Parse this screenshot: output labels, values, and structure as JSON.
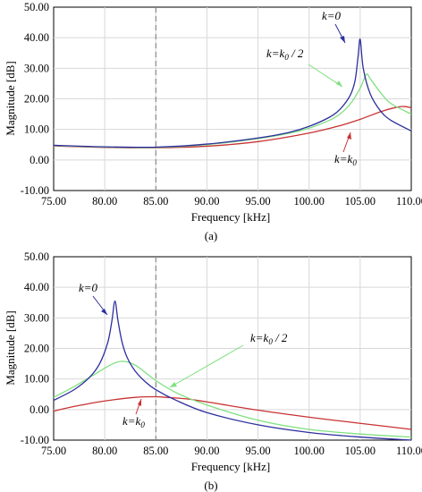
{
  "chart_data": [
    {
      "type": "line",
      "panel_label": "(a)",
      "xlabel": "Frequency [kHz]",
      "ylabel": "Magnitude [dB]",
      "xlim": [
        75,
        110
      ],
      "ylim": [
        -10,
        50
      ],
      "x_ticks": [
        "75.00",
        "80.00",
        "85.00",
        "90.00",
        "95.00",
        "100.00",
        "105.00",
        "110.00"
      ],
      "y_ticks": [
        "50.00",
        "40.00",
        "30.00",
        "20.00",
        "10.00",
        "0.00",
        "-10.00"
      ],
      "grid": true,
      "vertical_marker_x": 85,
      "series": [
        {
          "label": "k=0",
          "color": "#2e2e9e",
          "x": [
            75,
            80,
            85,
            90,
            95,
            98,
            100,
            102,
            103,
            104,
            104.5,
            104.8,
            105,
            105.3,
            106,
            107,
            108,
            110
          ],
          "y": [
            4.8,
            4.3,
            4.2,
            5.2,
            7.2,
            9.0,
            11.0,
            14.0,
            16.5,
            21.0,
            26.0,
            34.0,
            39.5,
            30.0,
            21.5,
            16.0,
            13.0,
            9.5
          ]
        },
        {
          "label": "k=k0 / 2",
          "color": "#7fe07f",
          "x": [
            75,
            80,
            85,
            90,
            95,
            98,
            100,
            102,
            103,
            104,
            105,
            105.6,
            106,
            107,
            108,
            110
          ],
          "y": [
            4.7,
            4.2,
            4.1,
            5.0,
            7.0,
            8.7,
            10.4,
            13.0,
            15.0,
            18.2,
            23.5,
            28.0,
            26.5,
            22.0,
            18.5,
            15.0
          ]
        },
        {
          "label": "k=k0",
          "color": "#c83232",
          "x": [
            75,
            80,
            85,
            90,
            95,
            100,
            103,
            105,
            107,
            108.5,
            109.3,
            110
          ],
          "y": [
            4.6,
            4.1,
            4.0,
            4.5,
            6.0,
            8.8,
            11.2,
            13.3,
            15.8,
            17.2,
            17.5,
            17.1
          ]
        }
      ],
      "annotations": [
        "k=0",
        "k=k0 / 2",
        "k=k0"
      ]
    },
    {
      "type": "line",
      "panel_label": "(b)",
      "xlabel": "Frequency [kHz]",
      "ylabel": "Magnitude [dB]",
      "xlim": [
        75,
        110
      ],
      "ylim": [
        -10,
        50
      ],
      "x_ticks": [
        "75.00",
        "80.00",
        "85.00",
        "90.00",
        "95.00",
        "100.00",
        "105.00",
        "110.00"
      ],
      "y_ticks": [
        "50.00",
        "40.00",
        "30.00",
        "20.00",
        "10.00",
        "0.00",
        "-10.00"
      ],
      "grid": true,
      "vertical_marker_x": 85,
      "series": [
        {
          "label": "k=0",
          "color": "#2e2e9e",
          "x": [
            75,
            77,
            78.5,
            79.5,
            80.3,
            80.7,
            81,
            81.3,
            81.7,
            82.2,
            83,
            84,
            85,
            87,
            90,
            95,
            100,
            105,
            110
          ],
          "y": [
            3.0,
            6.5,
            10.5,
            15.0,
            22.0,
            29.0,
            35.5,
            29.0,
            22.0,
            17.0,
            12.5,
            9.0,
            6.5,
            3.0,
            -1.0,
            -5.0,
            -7.5,
            -9.0,
            -10.0
          ]
        },
        {
          "label": "k=k0 / 2",
          "color": "#7fe07f",
          "x": [
            75,
            77,
            79,
            80.5,
            81.7,
            83,
            85,
            87,
            90,
            95,
            100,
            105,
            110
          ],
          "y": [
            4.0,
            7.5,
            11.5,
            14.5,
            15.8,
            14.5,
            9.5,
            5.5,
            1.5,
            -3.5,
            -6.5,
            -8.0,
            -9.0
          ]
        },
        {
          "label": "k=k0",
          "color": "#c83232",
          "x": [
            75,
            77,
            80,
            83,
            85,
            86,
            88,
            90,
            95,
            100,
            105,
            110
          ],
          "y": [
            -0.5,
            1.0,
            2.8,
            4.0,
            4.2,
            4.0,
            3.5,
            2.5,
            -0.2,
            -2.5,
            -4.5,
            -6.5
          ]
        }
      ],
      "annotations": [
        "k=0",
        "k=k0 / 2",
        "k=k0"
      ]
    }
  ]
}
